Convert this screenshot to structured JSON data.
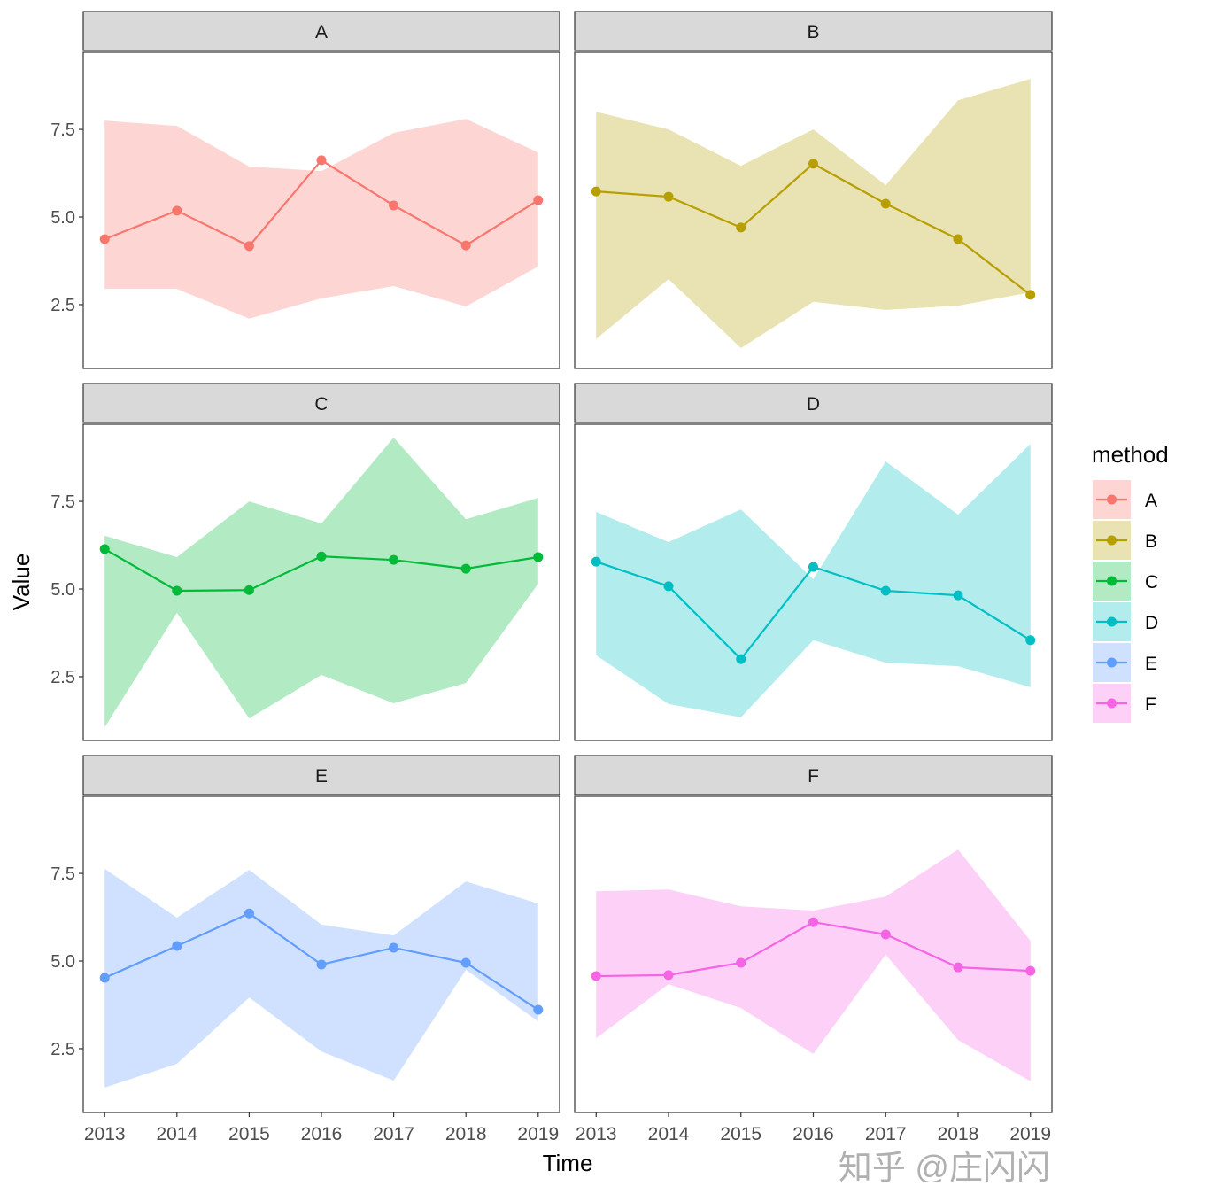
{
  "chart_data": {
    "type": "line",
    "facet_by": "method",
    "xlabel": "Time",
    "ylabel": "Value",
    "x": [
      2013,
      2014,
      2015,
      2016,
      2017,
      2018,
      2019
    ],
    "x_tick_labels": [
      "2013",
      "2014",
      "2015",
      "2016",
      "2017",
      "2018",
      "2019"
    ],
    "y_ticks": [
      2.5,
      5.0,
      7.5
    ],
    "y_tick_labels": [
      "2.5",
      "5.0",
      "7.5"
    ],
    "ylim": [
      0.68,
      9.7
    ],
    "grid": false,
    "legend": {
      "title": "method",
      "position": "right"
    },
    "ribbon_alpha": 0.3,
    "series": [
      {
        "name": "A",
        "color": "#F8766D",
        "values": [
          4.37,
          5.18,
          4.17,
          6.62,
          5.33,
          4.19,
          5.48
        ],
        "upper": [
          7.75,
          7.6,
          6.44,
          6.31,
          7.4,
          7.8,
          6.84
        ],
        "lower": [
          2.95,
          2.95,
          2.1,
          2.68,
          3.03,
          2.45,
          3.59
        ]
      },
      {
        "name": "B",
        "color": "#B79F00",
        "values": [
          5.73,
          5.58,
          4.7,
          6.52,
          5.38,
          4.37,
          2.78
        ],
        "upper": [
          8.0,
          7.5,
          6.46,
          7.5,
          5.91,
          8.33,
          8.94
        ],
        "lower": [
          1.52,
          3.23,
          1.26,
          2.58,
          2.35,
          2.47,
          2.85
        ]
      },
      {
        "name": "C",
        "color": "#00BA38",
        "values": [
          6.14,
          4.95,
          4.97,
          5.93,
          5.83,
          5.58,
          5.91
        ],
        "upper": [
          6.52,
          5.91,
          7.5,
          6.87,
          9.32,
          6.99,
          7.6
        ],
        "lower": [
          1.06,
          4.32,
          1.31,
          2.55,
          1.74,
          2.32,
          5.15
        ]
      },
      {
        "name": "D",
        "color": "#00BFC4",
        "values": [
          5.78,
          5.08,
          3.0,
          5.63,
          4.95,
          4.82,
          3.54
        ],
        "upper": [
          7.2,
          6.34,
          7.27,
          5.28,
          8.64,
          7.12,
          9.14
        ],
        "lower": [
          3.11,
          1.72,
          1.34,
          3.54,
          2.9,
          2.8,
          2.2
        ]
      },
      {
        "name": "E",
        "color": "#619CFF",
        "values": [
          4.52,
          5.43,
          6.36,
          4.9,
          5.38,
          4.95,
          3.61
        ],
        "upper": [
          7.63,
          6.24,
          7.6,
          6.04,
          5.73,
          7.27,
          6.64
        ],
        "lower": [
          1.39,
          2.07,
          3.96,
          2.42,
          1.59,
          4.75,
          3.28
        ]
      },
      {
        "name": "F",
        "color": "#F564E3",
        "values": [
          4.57,
          4.6,
          4.95,
          6.11,
          5.76,
          4.82,
          4.72
        ],
        "upper": [
          6.99,
          7.04,
          6.56,
          6.44,
          6.84,
          8.18,
          5.58
        ],
        "lower": [
          2.8,
          4.34,
          3.66,
          2.35,
          5.18,
          2.75,
          1.57
        ]
      }
    ]
  },
  "watermark": "知乎 @庄闪闪"
}
